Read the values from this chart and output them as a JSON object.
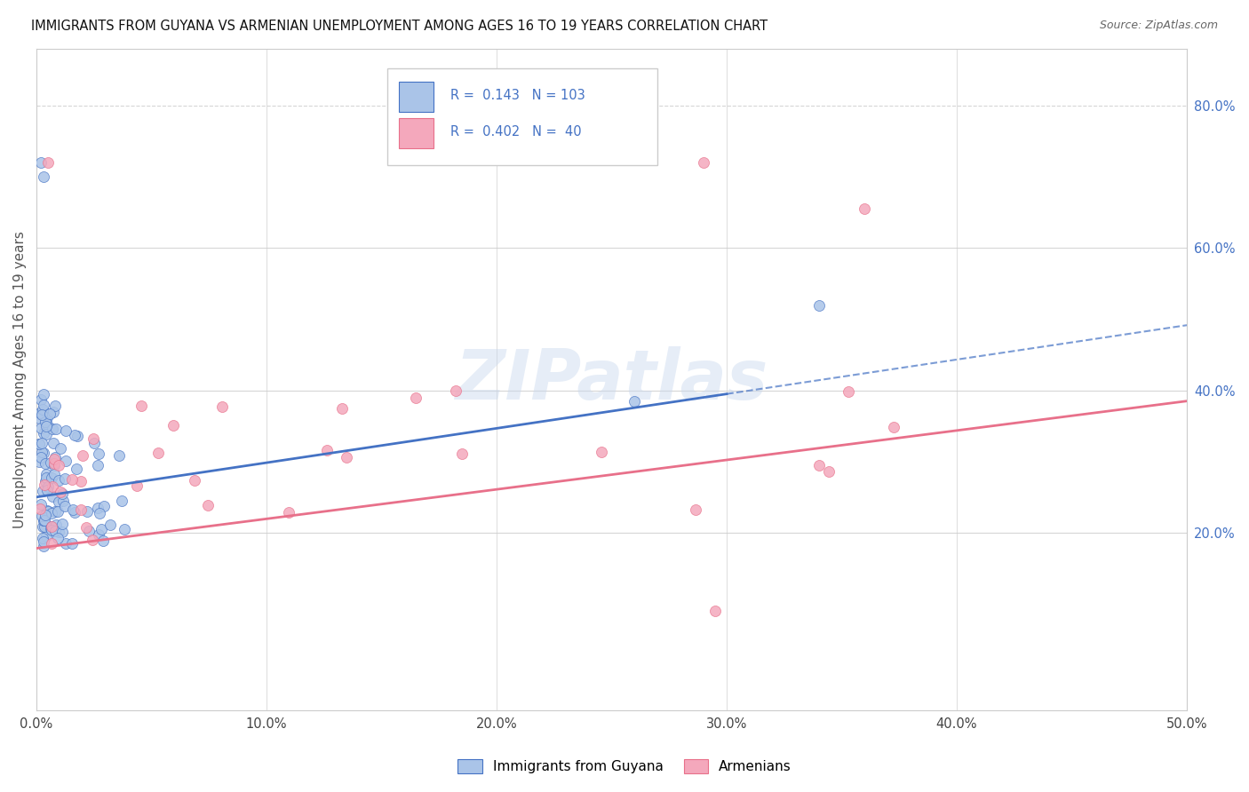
{
  "title": "IMMIGRANTS FROM GUYANA VS ARMENIAN UNEMPLOYMENT AMONG AGES 16 TO 19 YEARS CORRELATION CHART",
  "source": "Source: ZipAtlas.com",
  "ylabel": "Unemployment Among Ages 16 to 19 years",
  "ylabel_right_ticks": [
    "80.0%",
    "60.0%",
    "40.0%",
    "20.0%"
  ],
  "ylabel_right_vals": [
    0.8,
    0.6,
    0.4,
    0.2
  ],
  "watermark": "ZIPatlas",
  "guyana_color": "#aac4e8",
  "armenian_color": "#f4a8bc",
  "guyana_line_color": "#4472c4",
  "armenian_line_color": "#e8708a",
  "background_color": "#ffffff",
  "grid_color": "#cccccc",
  "xlim": [
    0.0,
    0.5
  ],
  "ylim": [
    -0.05,
    0.88
  ],
  "guyana_R": 0.143,
  "guyana_N": 103,
  "armenian_R": 0.402,
  "armenian_N": 40,
  "guyana_line_x0": 0.0,
  "guyana_line_y0": 0.25,
  "guyana_line_x1": 0.3,
  "guyana_line_y1": 0.395,
  "armenian_line_x0": 0.0,
  "armenian_line_y0": 0.178,
  "armenian_line_x1": 0.5,
  "armenian_line_y1": 0.385
}
